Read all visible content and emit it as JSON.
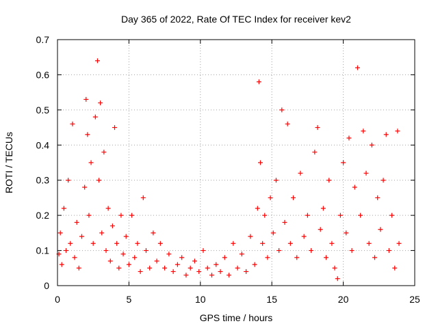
{
  "chart_data": {
    "type": "scatter",
    "title": "Day 365 of 2022, Rate Of TEC Index for receiver kev2",
    "xlabel": "GPS time / hours",
    "ylabel": "ROTI / TECUs",
    "xlim": [
      0,
      25
    ],
    "ylim": [
      0,
      0.7
    ],
    "xticks": [
      0,
      5,
      10,
      15,
      20,
      25
    ],
    "xtick_labels": [
      "0",
      "5",
      "10",
      "15",
      "20",
      "25"
    ],
    "yticks": [
      0,
      0.1,
      0.2,
      0.3,
      0.4,
      0.5,
      0.6,
      0.7
    ],
    "ytick_labels": [
      "0",
      "0.1",
      "0.2",
      "0.3",
      "0.4",
      "0.5",
      "0.6",
      "0.7"
    ],
    "grid": true,
    "grid_style": "dotted",
    "marker": "plus",
    "marker_color": "#ff0000",
    "series": [
      {
        "x": [
          0.1,
          0.2,
          0.3,
          0.45,
          0.6,
          0.75,
          0.9,
          1.05,
          1.2,
          1.35,
          1.5,
          1.7,
          1.9,
          2.0,
          2.1,
          2.2,
          2.35,
          2.5,
          2.65,
          2.8,
          2.9,
          3.0,
          3.1,
          3.25,
          3.4,
          3.55,
          3.7,
          3.85,
          4.0,
          4.15,
          4.3,
          4.45,
          4.6,
          4.8,
          5.0,
          5.2,
          5.4,
          5.6,
          5.8,
          6.0,
          6.2,
          6.45,
          6.7,
          6.95,
          7.2,
          7.5,
          7.8,
          8.1,
          8.4,
          8.7,
          9.0,
          9.3,
          9.6,
          9.9,
          10.2,
          10.5,
          10.8,
          11.1,
          11.4,
          11.7,
          12.0,
          12.3,
          12.6,
          12.9,
          13.2,
          13.5,
          13.8,
          14.0,
          14.1,
          14.2,
          14.35,
          14.5,
          14.7,
          14.9,
          15.1,
          15.3,
          15.5,
          15.7,
          15.9,
          16.1,
          16.3,
          16.5,
          16.75,
          17.0,
          17.25,
          17.5,
          17.75,
          18.0,
          18.2,
          18.4,
          18.6,
          18.8,
          19.0,
          19.2,
          19.4,
          19.6,
          19.8,
          20.0,
          20.2,
          20.4,
          20.6,
          20.8,
          21.0,
          21.2,
          21.4,
          21.6,
          21.8,
          22.0,
          22.2,
          22.4,
          22.6,
          22.8,
          23.0,
          23.2,
          23.4,
          23.6,
          23.8,
          23.9
        ],
        "y": [
          0.09,
          0.15,
          0.06,
          0.22,
          0.1,
          0.3,
          0.12,
          0.46,
          0.08,
          0.18,
          0.05,
          0.14,
          0.28,
          0.53,
          0.43,
          0.2,
          0.35,
          0.12,
          0.48,
          0.64,
          0.3,
          0.52,
          0.15,
          0.38,
          0.1,
          0.22,
          0.07,
          0.17,
          0.45,
          0.12,
          0.05,
          0.2,
          0.09,
          0.14,
          0.06,
          0.2,
          0.08,
          0.12,
          0.04,
          0.25,
          0.1,
          0.05,
          0.15,
          0.07,
          0.12,
          0.05,
          0.09,
          0.04,
          0.06,
          0.08,
          0.03,
          0.05,
          0.07,
          0.04,
          0.1,
          0.05,
          0.03,
          0.06,
          0.04,
          0.08,
          0.03,
          0.12,
          0.05,
          0.09,
          0.04,
          0.14,
          0.06,
          0.22,
          0.58,
          0.35,
          0.12,
          0.2,
          0.08,
          0.25,
          0.15,
          0.3,
          0.1,
          0.5,
          0.18,
          0.46,
          0.12,
          0.25,
          0.08,
          0.32,
          0.14,
          0.2,
          0.1,
          0.38,
          0.45,
          0.16,
          0.22,
          0.08,
          0.3,
          0.12,
          0.05,
          0.02,
          0.2,
          0.35,
          0.15,
          0.42,
          0.1,
          0.28,
          0.62,
          0.2,
          0.44,
          0.32,
          0.12,
          0.4,
          0.08,
          0.25,
          0.16,
          0.3,
          0.43,
          0.1,
          0.2,
          0.05,
          0.44,
          0.12
        ]
      }
    ]
  }
}
